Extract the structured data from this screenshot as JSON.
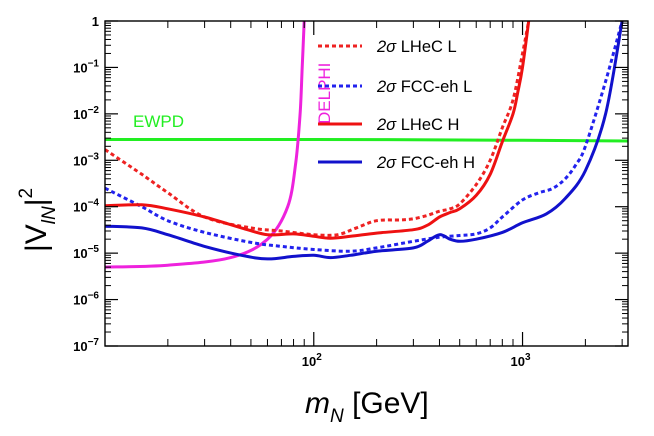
{
  "chart_data": {
    "type": "line",
    "xscale": "log",
    "yscale": "log",
    "xlim": [
      10,
      3200
    ],
    "ylim": [
      1e-07,
      1
    ],
    "xlabel_main": "m",
    "xlabel_sub": "N",
    "xlabel_unit": " [GeV]",
    "ylabel_main": "|V",
    "ylabel_sub": "lN",
    "ylabel_close": "|",
    "ylabel_sup": "2",
    "x_ticks": [
      {
        "value": 100,
        "base": "10",
        "exp": "2"
      },
      {
        "value": 1000,
        "base": "10",
        "exp": "3"
      }
    ],
    "y_ticks": [
      {
        "value": 1,
        "label": "1",
        "base": "",
        "exp": ""
      },
      {
        "value": 0.1,
        "label": "",
        "base": "10",
        "exp": "−1"
      },
      {
        "value": 0.01,
        "label": "",
        "base": "10",
        "exp": "−2"
      },
      {
        "value": 0.001,
        "label": "",
        "base": "10",
        "exp": "−3"
      },
      {
        "value": 0.0001,
        "label": "",
        "base": "10",
        "exp": "−4"
      },
      {
        "value": 1e-05,
        "label": "",
        "base": "10",
        "exp": "−5"
      },
      {
        "value": 1e-06,
        "label": "",
        "base": "10",
        "exp": "−6"
      },
      {
        "value": 1e-07,
        "label": "",
        "base": "10",
        "exp": "−7"
      }
    ],
    "series": [
      {
        "name": "EWPD",
        "color": "#22ee22",
        "dash": "solid",
        "x": [
          10,
          100,
          1000,
          3200
        ],
        "y": [
          0.0028,
          0.0028,
          0.0027,
          0.0026
        ]
      },
      {
        "name": "DELPHI",
        "color": "#ee22dd",
        "dash": "solid",
        "x": [
          10,
          20,
          40,
          60,
          75,
          82,
          86,
          88,
          90
        ],
        "y": [
          5e-06,
          5.5e-06,
          8e-06,
          2e-05,
          0.0001,
          0.0009,
          0.01,
          0.1,
          1
        ]
      },
      {
        "name": "LHeC L",
        "color": "#ee2222",
        "dash": "dotted",
        "x": [
          10,
          15,
          20,
          30,
          50,
          70,
          100,
          130,
          160,
          200,
          260,
          300,
          350,
          400,
          450,
          500,
          600,
          700,
          800,
          900,
          1000,
          1070
        ],
        "y": [
          0.0017,
          0.0005,
          0.0002,
          6e-05,
          3.5e-05,
          3e-05,
          2.5e-05,
          2.5e-05,
          3.5e-05,
          5e-05,
          5.2e-05,
          5.5e-05,
          6.5e-05,
          8e-05,
          9e-05,
          0.000115,
          0.0003,
          0.001,
          0.005,
          0.02,
          0.2,
          1
        ]
      },
      {
        "name": "FCC-eh L",
        "color": "#2222ee",
        "dash": "dotted",
        "x": [
          10,
          15,
          20,
          30,
          50,
          70,
          100,
          150,
          200,
          300,
          400,
          500,
          600,
          700,
          800,
          1000,
          1200,
          1400,
          1600,
          1800,
          2000,
          2500,
          3000
        ],
        "y": [
          0.00025,
          0.0001,
          5e-05,
          2.8e-05,
          1.7e-05,
          1.4e-05,
          1.2e-05,
          1.1e-05,
          1.3e-05,
          1.8e-05,
          2.2e-05,
          2.4e-05,
          2.6e-05,
          3.5e-05,
          6e-05,
          0.00014,
          0.0002,
          0.00025,
          0.0004,
          0.0008,
          0.002,
          0.05,
          1
        ]
      },
      {
        "name": "LHeC H",
        "color": "#ee1111",
        "dash": "solid",
        "x": [
          10,
          15,
          20,
          30,
          45,
          60,
          80,
          100,
          120,
          150,
          200,
          300,
          350,
          400,
          450,
          500,
          600,
          700,
          800,
          900,
          950,
          1000,
          1070
        ],
        "y": [
          0.000105,
          0.00011,
          9e-05,
          6e-05,
          3.5e-05,
          2.5e-05,
          2.6e-05,
          2.3e-05,
          2.1e-05,
          2.3e-05,
          2.7e-05,
          3.2e-05,
          4e-05,
          6e-05,
          7.5e-05,
          9e-05,
          0.000175,
          0.0005,
          0.0025,
          0.01,
          0.03,
          0.1,
          1
        ]
      },
      {
        "name": "FCC-eh H",
        "color": "#1111cc",
        "dash": "solid",
        "x": [
          10,
          15,
          20,
          30,
          45,
          60,
          80,
          100,
          120,
          150,
          200,
          300,
          350,
          400,
          450,
          500,
          600,
          800,
          1000,
          1300,
          1600,
          2000,
          2500,
          3000
        ],
        "y": [
          3.8e-05,
          3.5e-05,
          2.5e-05,
          1.4e-05,
          9e-06,
          7.5e-06,
          8.5e-06,
          9e-06,
          8e-06,
          9e-06,
          1.1e-05,
          1.3e-05,
          1.8e-05,
          2.5e-05,
          2e-05,
          1.8e-05,
          2e-05,
          2.8e-05,
          4.5e-05,
          7e-05,
          0.00015,
          0.0006,
          0.01,
          1
        ]
      }
    ],
    "legend": {
      "placement": "top-right",
      "entries": [
        {
          "prefix": "2σ",
          "text": " LHeC L",
          "color": "#ee2222",
          "dash": "dotted"
        },
        {
          "prefix": "2σ",
          "text": " FCC-eh L",
          "color": "#2222ee",
          "dash": "dotted"
        },
        {
          "prefix": "2σ",
          "text": " LHeC H",
          "color": "#ee1111",
          "dash": "solid"
        },
        {
          "prefix": "2σ",
          "text": " FCC-eh H",
          "color": "#1111cc",
          "dash": "solid"
        }
      ]
    },
    "annotations": {
      "ewpd": "EWPD",
      "delphi": "DELPHI"
    }
  }
}
